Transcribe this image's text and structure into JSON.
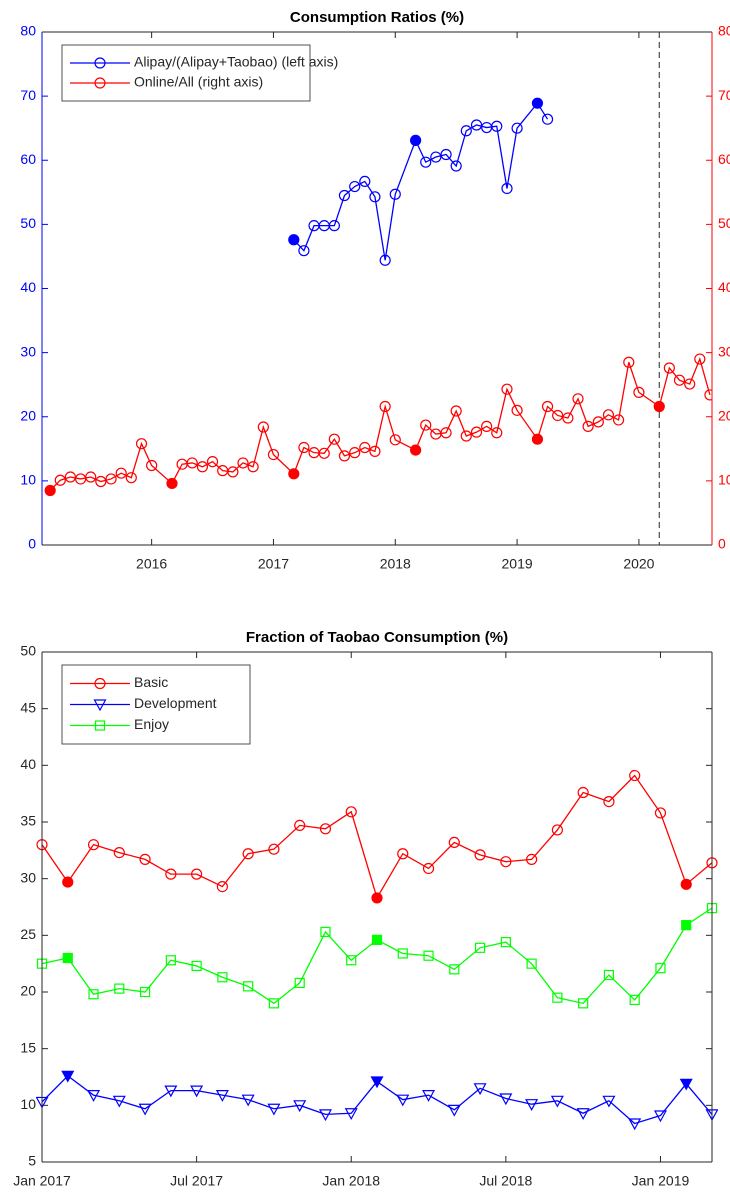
{
  "chart_data": [
    {
      "type": "line",
      "title": "Consumption Ratios (%)",
      "xlim": [
        2015.1,
        2020.6
      ],
      "xticks": [
        2016,
        2017,
        2018,
        2019,
        2020
      ],
      "ylim": [
        0,
        80
      ],
      "yticks": [
        0,
        10,
        20,
        30,
        40,
        50,
        60,
        70,
        80
      ],
      "ycolor": "#0000ff",
      "y2lim": [
        0,
        80
      ],
      "y2ticks": [
        0,
        10,
        20,
        30,
        40,
        50,
        60,
        70,
        80
      ],
      "y2color": "#ff0000",
      "vline": 2020.167,
      "legend": "upper left",
      "grid": false,
      "series": [
        {
          "name": "Alipay/(Alipay+Taobao) (left axis)",
          "color": "#0000ff",
          "axis": "y",
          "marker": "circle",
          "x": [
            2017.167,
            2017.25,
            2017.333,
            2017.417,
            2017.5,
            2017.583,
            2017.667,
            2017.75,
            2017.833,
            2017.917,
            2018.0,
            2018.167,
            2018.25,
            2018.333,
            2018.417,
            2018.5,
            2018.583,
            2018.667,
            2018.75,
            2018.833,
            2018.917,
            2019.0,
            2019.167,
            2019.25
          ],
          "values": [
            47.6,
            45.9,
            49.8,
            49.8,
            49.8,
            54.5,
            55.9,
            56.7,
            54.3,
            44.4,
            54.7,
            63.1,
            59.7,
            60.5,
            60.9,
            59.1,
            64.6,
            65.5,
            65.1,
            65.3,
            55.6,
            65.0,
            68.9,
            66.4
          ],
          "filled": [
            0,
            11,
            22
          ]
        },
        {
          "name": "Online/All (right axis)",
          "color": "#ff0000",
          "axis": "y2",
          "marker": "circle",
          "x": [
            2015.167,
            2015.25,
            2015.333,
            2015.417,
            2015.5,
            2015.583,
            2015.667,
            2015.75,
            2015.833,
            2015.917,
            2016.0,
            2016.167,
            2016.25,
            2016.333,
            2016.417,
            2016.5,
            2016.583,
            2016.667,
            2016.75,
            2016.833,
            2016.917,
            2017.0,
            2017.167,
            2017.25,
            2017.333,
            2017.417,
            2017.5,
            2017.583,
            2017.667,
            2017.75,
            2017.833,
            2017.917,
            2018.0,
            2018.167,
            2018.25,
            2018.333,
            2018.417,
            2018.5,
            2018.583,
            2018.667,
            2018.75,
            2018.833,
            2018.917,
            2019.0,
            2019.167,
            2019.25,
            2019.333,
            2019.417,
            2019.5,
            2019.583,
            2019.667,
            2019.75,
            2019.833,
            2019.917,
            2020.0,
            2020.167,
            2020.25,
            2020.333,
            2020.417,
            2020.5,
            2020.583
          ],
          "values": [
            8.5,
            10.1,
            10.6,
            10.3,
            10.6,
            9.9,
            10.3,
            11.2,
            10.5,
            15.8,
            12.4,
            9.6,
            12.6,
            12.8,
            12.2,
            13.0,
            11.6,
            11.4,
            12.8,
            12.2,
            18.4,
            14.1,
            11.1,
            15.2,
            14.4,
            14.3,
            16.5,
            13.9,
            14.4,
            15.2,
            14.6,
            21.6,
            16.4,
            14.8,
            18.7,
            17.3,
            17.5,
            20.9,
            17.0,
            17.6,
            18.5,
            17.5,
            24.3,
            21.0,
            16.5,
            21.6,
            20.2,
            19.8,
            22.8,
            18.5,
            19.2,
            20.3,
            19.5,
            28.5,
            23.8,
            21.6,
            27.6,
            25.7,
            25.1,
            29.0,
            23.4
          ],
          "filled": [
            0,
            11,
            22,
            33,
            44,
            55
          ]
        }
      ]
    },
    {
      "type": "line",
      "title": "Fraction of Taobao Consumption (%)",
      "xlim": [
        "2017-01",
        "2019-03"
      ],
      "xticks": [
        {
          "value": "2017-01",
          "label": "Jan 2017"
        },
        {
          "value": "2017-07",
          "label": "Jul 2017"
        },
        {
          "value": "2018-01",
          "label": "Jan 2018"
        },
        {
          "value": "2018-07",
          "label": "Jul 2018"
        },
        {
          "value": "2019-01",
          "label": "Jan 2019"
        }
      ],
      "ylim": [
        5,
        50
      ],
      "yticks": [
        5,
        10,
        15,
        20,
        25,
        30,
        35,
        40,
        45,
        50
      ],
      "legend": "upper left",
      "grid": false,
      "x": [
        "2017-01",
        "2017-02",
        "2017-03",
        "2017-04",
        "2017-05",
        "2017-06",
        "2017-07",
        "2017-08",
        "2017-09",
        "2017-10",
        "2017-11",
        "2017-12",
        "2018-01",
        "2018-02",
        "2018-03",
        "2018-04",
        "2018-05",
        "2018-06",
        "2018-07",
        "2018-08",
        "2018-09",
        "2018-10",
        "2018-11",
        "2018-12",
        "2019-01",
        "2019-02",
        "2019-03"
      ],
      "series": [
        {
          "name": "Basic",
          "color": "#ff0000",
          "marker": "circle",
          "values": [
            33.0,
            29.7,
            33.0,
            32.3,
            31.7,
            30.4,
            30.4,
            29.3,
            32.2,
            32.6,
            34.7,
            34.4,
            35.9,
            28.3,
            32.2,
            30.9,
            33.2,
            32.1,
            31.5,
            31.7,
            34.3,
            37.6,
            36.8,
            39.1,
            35.8,
            29.5,
            31.4
          ],
          "filled": [
            1,
            13,
            25
          ]
        },
        {
          "name": "Development",
          "color": "#0000ff",
          "marker": "triangle-down",
          "values": [
            10.3,
            12.6,
            10.9,
            10.4,
            9.7,
            11.3,
            11.3,
            10.9,
            10.5,
            9.7,
            10.0,
            9.2,
            9.3,
            12.1,
            10.5,
            10.9,
            9.6,
            11.5,
            10.6,
            10.1,
            10.4,
            9.3,
            10.4,
            8.4,
            9.1,
            11.9,
            9.2
          ],
          "filled": [
            1,
            13,
            25
          ]
        },
        {
          "name": "Enjoy",
          "color": "#00ff00",
          "marker": "square",
          "values": [
            22.5,
            23.0,
            19.8,
            20.3,
            20.0,
            22.8,
            22.3,
            21.3,
            20.5,
            19.0,
            20.8,
            25.3,
            22.8,
            24.6,
            23.4,
            23.2,
            22.0,
            23.9,
            24.4,
            22.5,
            19.5,
            19.0,
            21.5,
            19.3,
            22.1,
            25.9,
            27.4
          ],
          "filled": [
            1,
            13,
            25
          ]
        }
      ]
    }
  ]
}
